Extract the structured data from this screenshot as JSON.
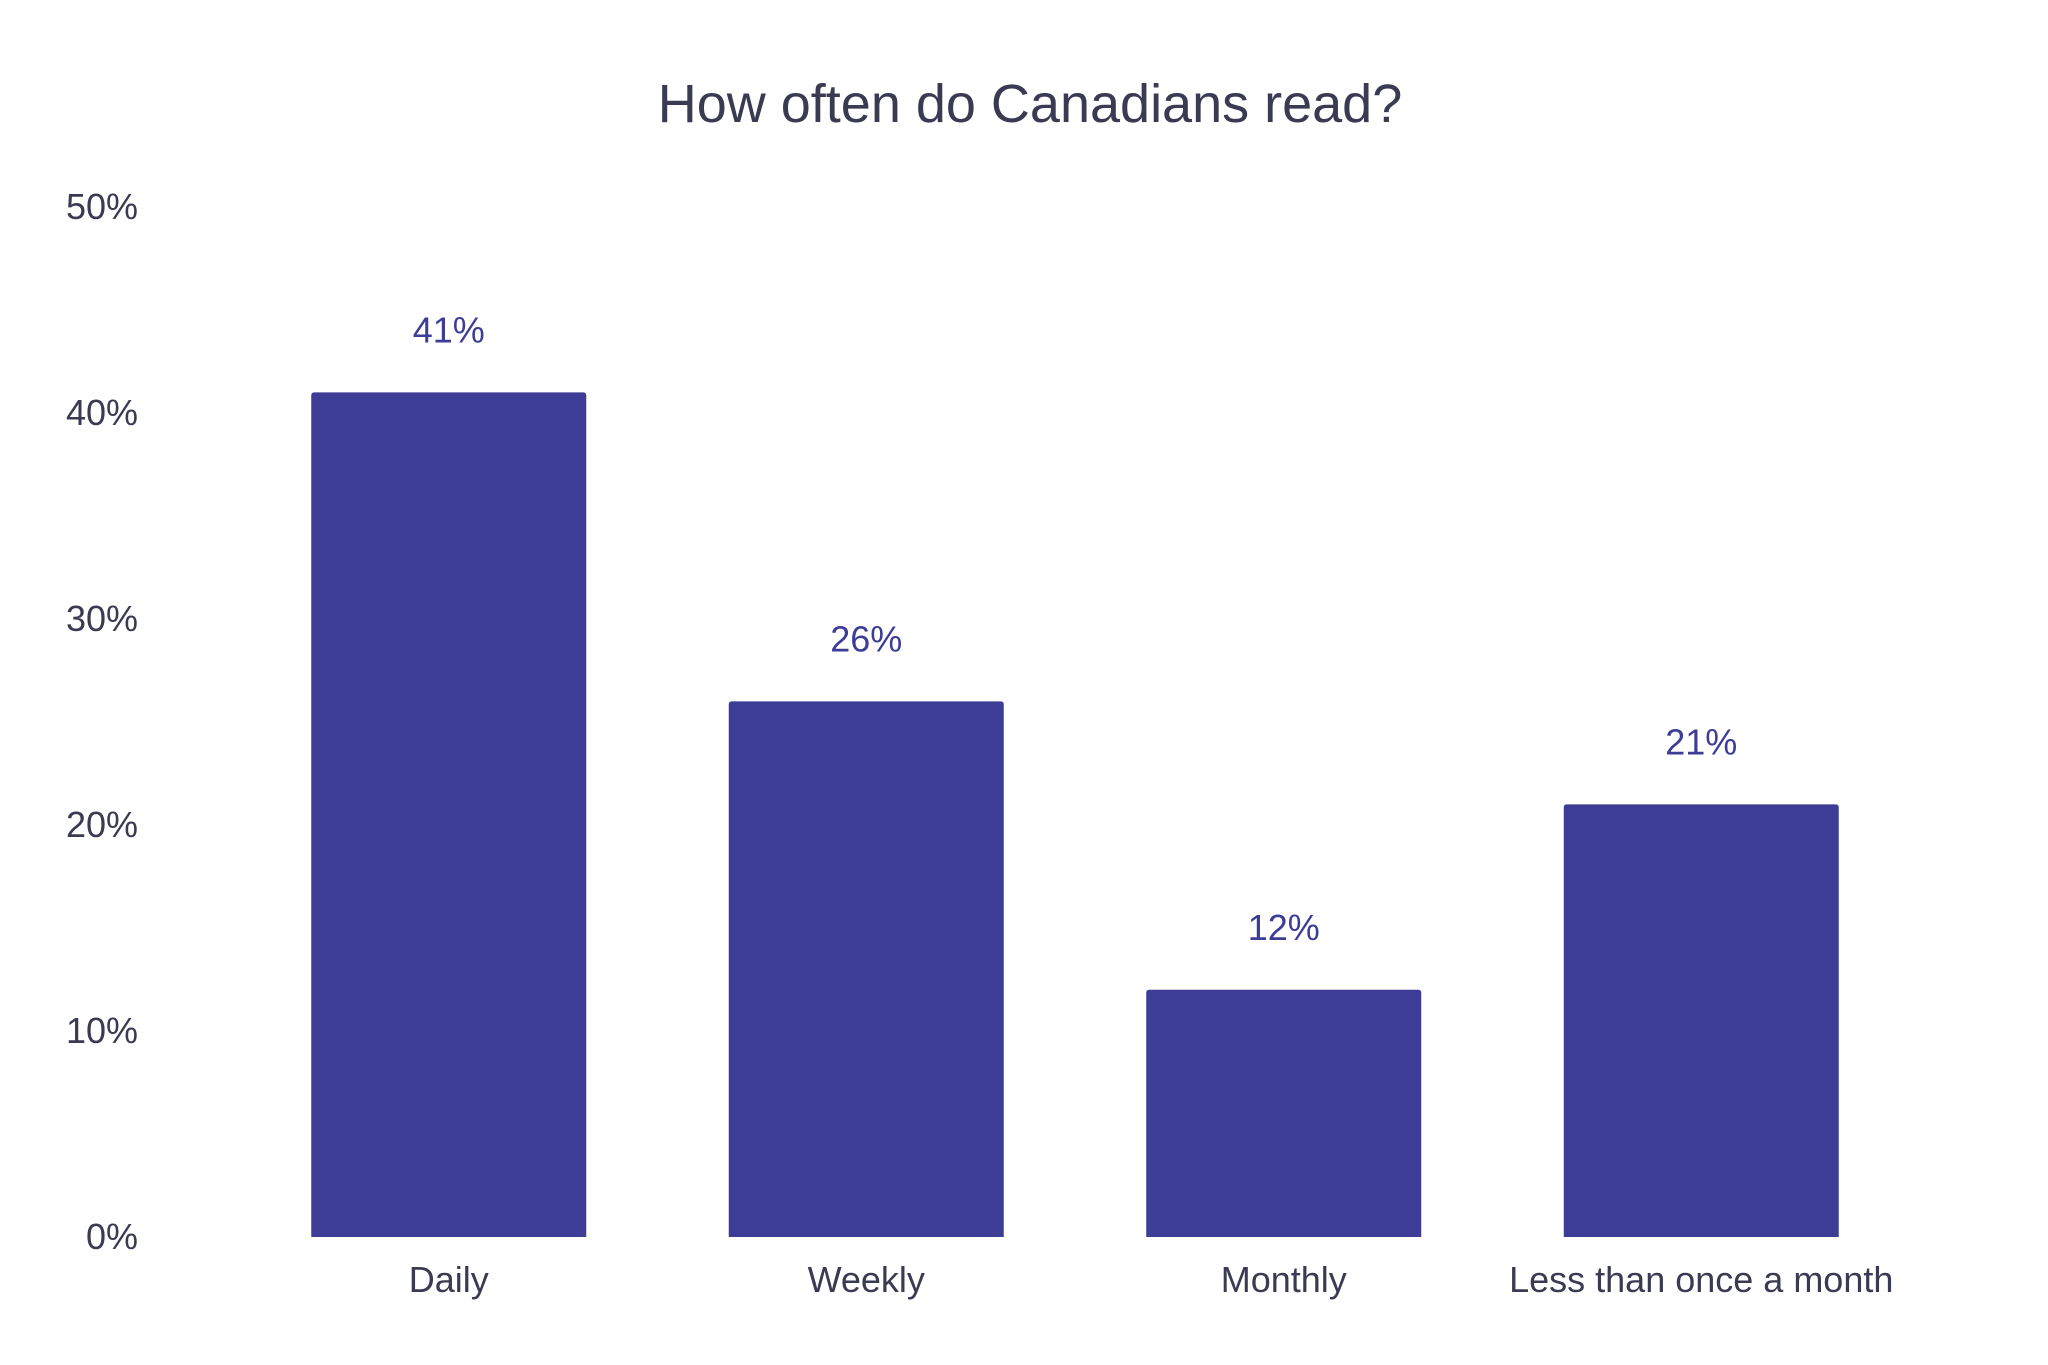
{
  "chart_data": {
    "type": "bar",
    "title": "How often do Canadians read?",
    "categories": [
      "Daily",
      "Weekly",
      "Monthly",
      "Less than once a month"
    ],
    "values": [
      41,
      26,
      12,
      21
    ],
    "data_labels": [
      "41%",
      "26%",
      "12%",
      "21%"
    ],
    "ylim": [
      0,
      50
    ],
    "yticks": [
      0,
      10,
      20,
      30,
      40,
      50
    ],
    "ytick_labels": [
      "0%",
      "10%",
      "20%",
      "30%",
      "40%",
      "50%"
    ],
    "xlabel": "",
    "ylabel": "",
    "grid": false,
    "bar_color": "#3d3c96"
  }
}
